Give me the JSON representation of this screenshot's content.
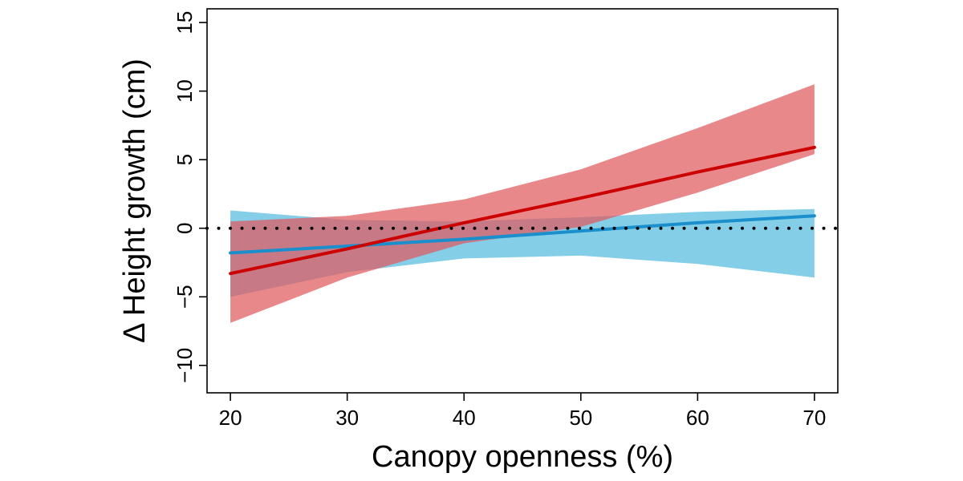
{
  "chart_data": {
    "type": "line",
    "xlabel": "Canopy openness (%)",
    "ylabel": "Δ Height growth (cm)",
    "xlim": [
      18,
      72
    ],
    "ylim": [
      -12,
      16
    ],
    "x_ticks": [
      20,
      30,
      40,
      50,
      60,
      70
    ],
    "x_tick_labels": [
      "20",
      "30",
      "40",
      "50",
      "60",
      "70"
    ],
    "y_ticks": [
      -10,
      -5,
      0,
      5,
      10,
      15
    ],
    "y_tick_labels": [
      "−10",
      "−5",
      "0",
      "5",
      "10",
      "15"
    ],
    "grid": false,
    "legend": "none",
    "reference_line": {
      "y": 0,
      "style": "dotted",
      "color": "#000000"
    },
    "series": [
      {
        "color": "#1a8fcc",
        "band_color": "#5bbde0",
        "x": [
          20,
          30,
          40,
          50,
          60,
          70
        ],
        "y": [
          -1.8,
          -1.3,
          -0.8,
          -0.2,
          0.4,
          0.9
        ],
        "lower": [
          -5.0,
          -3.2,
          -2.2,
          -2.0,
          -2.6,
          -3.6
        ],
        "upper": [
          1.3,
          0.6,
          0.5,
          0.8,
          1.2,
          1.4
        ]
      },
      {
        "color": "#cc0000",
        "band_color": "#e05a5e",
        "x": [
          20,
          30,
          40,
          50,
          60,
          70
        ],
        "y": [
          -3.3,
          -1.5,
          0.4,
          2.2,
          4.1,
          5.9
        ],
        "lower": [
          -6.9,
          -3.6,
          -1.1,
          0.1,
          2.6,
          5.4
        ],
        "upper": [
          0.5,
          0.9,
          2.1,
          4.3,
          7.3,
          10.5
        ]
      }
    ]
  }
}
